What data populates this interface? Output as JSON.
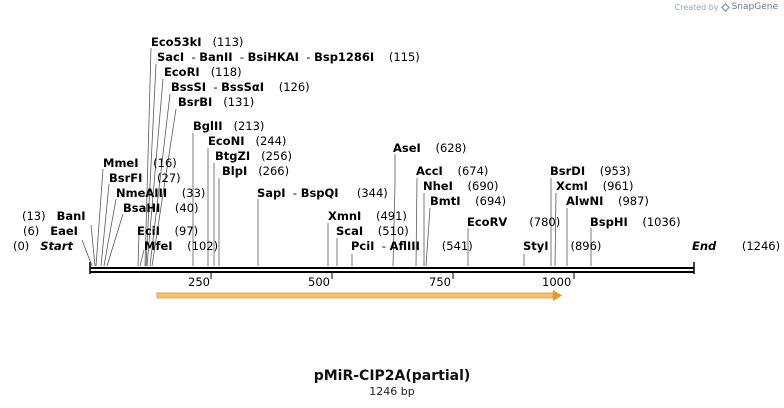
{
  "watermark": {
    "prefix": "Created by",
    "brand": "SnapGene"
  },
  "map": {
    "title": "pMiR-CIP2A(partial)",
    "length_label": "1246 bp",
    "ruler_ticks": [
      "250",
      "500",
      "750",
      "1000"
    ],
    "feature_arrow": {
      "color": "#f0b040"
    },
    "sites": [
      {
        "name": "Eco53kI",
        "pos": "(113)"
      },
      {
        "name": "SacI",
        "alt1": "BanII",
        "alt2": "BsiHKAI",
        "alt3": "Bsp1286I",
        "pos": "(115)"
      },
      {
        "name": "EcoRI",
        "pos": "(118)"
      },
      {
        "name": "BssSI",
        "alt1": "BssSαI",
        "pos": "(126)"
      },
      {
        "name": "BsrBI",
        "pos": "(131)"
      },
      {
        "name": "BglII",
        "pos": "(213)"
      },
      {
        "name": "EcoNI",
        "pos": "(244)"
      },
      {
        "name": "BtgZI",
        "pos": "(256)"
      },
      {
        "name": "BlpI",
        "pos": "(266)"
      },
      {
        "name": "MmeI",
        "pos": "(16)"
      },
      {
        "name": "BsrFI",
        "pos": "(27)"
      },
      {
        "name": "NmeAIII",
        "pos": "(33)"
      },
      {
        "name": "BsaHI",
        "pos": "(40)"
      },
      {
        "name": "BanI",
        "pos": "(13)"
      },
      {
        "name": "EaeI",
        "pos": "(6)"
      },
      {
        "name": "Start",
        "pos": "(0)"
      },
      {
        "name": "EciI",
        "pos": "(97)"
      },
      {
        "name": "MfeI",
        "pos": "(102)"
      },
      {
        "name": "SapI",
        "alt1": "BspQI",
        "pos": "(344)"
      },
      {
        "name": "XmnI",
        "pos": "(491)"
      },
      {
        "name": "ScaI",
        "pos": "(510)"
      },
      {
        "name": "PciI",
        "alt1": "AflIII",
        "pos": "(541)"
      },
      {
        "name": "AseI",
        "pos": "(628)"
      },
      {
        "name": "AccI",
        "pos": "(674)"
      },
      {
        "name": "NheI",
        "pos": "(690)"
      },
      {
        "name": "BmtI",
        "pos": "(694)"
      },
      {
        "name": "EcoRV",
        "pos": "(780)"
      },
      {
        "name": "StyI",
        "pos": "(896)"
      },
      {
        "name": "BsrDI",
        "pos": "(953)"
      },
      {
        "name": "XcmI",
        "pos": "(961)"
      },
      {
        "name": "AlwNI",
        "pos": "(987)"
      },
      {
        "name": "BspHI",
        "pos": "(1036)"
      },
      {
        "name": "End",
        "pos": "(1246)"
      }
    ]
  }
}
